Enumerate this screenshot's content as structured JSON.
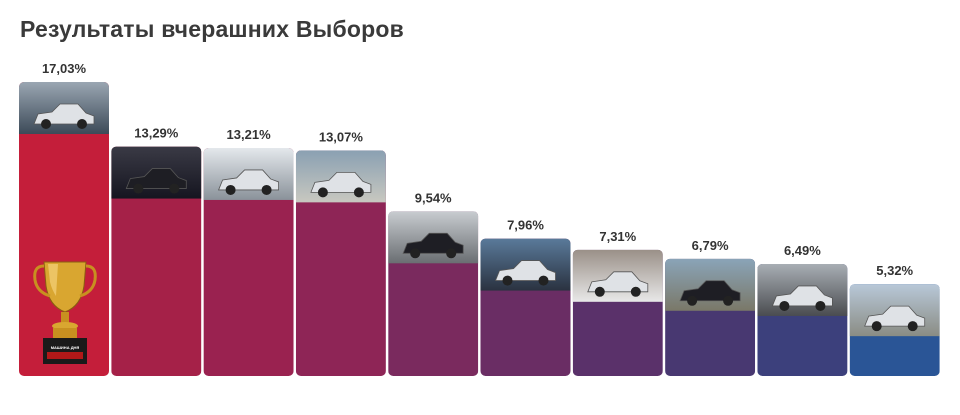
{
  "title": "Результаты вчерашних Выборов",
  "trophy_plaque": "МАШИНА ДНЯ",
  "chart_data": {
    "type": "bar",
    "title": "Результаты вчерашних Выборов",
    "categories": [
      "",
      "",
      "",
      "",
      "",
      "",
      "",
      "",
      "",
      ""
    ],
    "values": [
      17.03,
      13.29,
      13.21,
      13.07,
      9.54,
      7.96,
      7.31,
      6.79,
      6.49,
      5.32
    ],
    "value_labels": [
      "17,03%",
      "13,29%",
      "13,21%",
      "13,07%",
      "9,54%",
      "7,96%",
      "7,31%",
      "6,79%",
      "6,49%",
      "5,32%"
    ],
    "bar_colors": [
      "#c41e3a",
      "#a52148",
      "#9a2250",
      "#8e2556",
      "#7a2a5e",
      "#6a2d64",
      "#5a316a",
      "#483871",
      "#3c407c",
      "#2a5596"
    ],
    "photo_colors": [
      [
        "#9aa6b2",
        "#3c4a58"
      ],
      [
        "#3a3a45",
        "#151520"
      ],
      [
        "#e4e8ec",
        "#8a929a"
      ],
      [
        "#8aa0b2",
        "#c8c8c0"
      ],
      [
        "#c8ccd0",
        "#6a6e72"
      ],
      [
        "#5a7a9a",
        "#2a3240"
      ],
      [
        "#9a9088",
        "#e8e8e8"
      ],
      [
        "#8aa4b8",
        "#7a7868"
      ],
      [
        "#a8aeb4",
        "#4a4c50"
      ],
      [
        "#b8c8d8",
        "#8a8c84"
      ]
    ],
    "ylim": [
      0,
      17.03
    ],
    "grid": false,
    "legend": "none"
  }
}
